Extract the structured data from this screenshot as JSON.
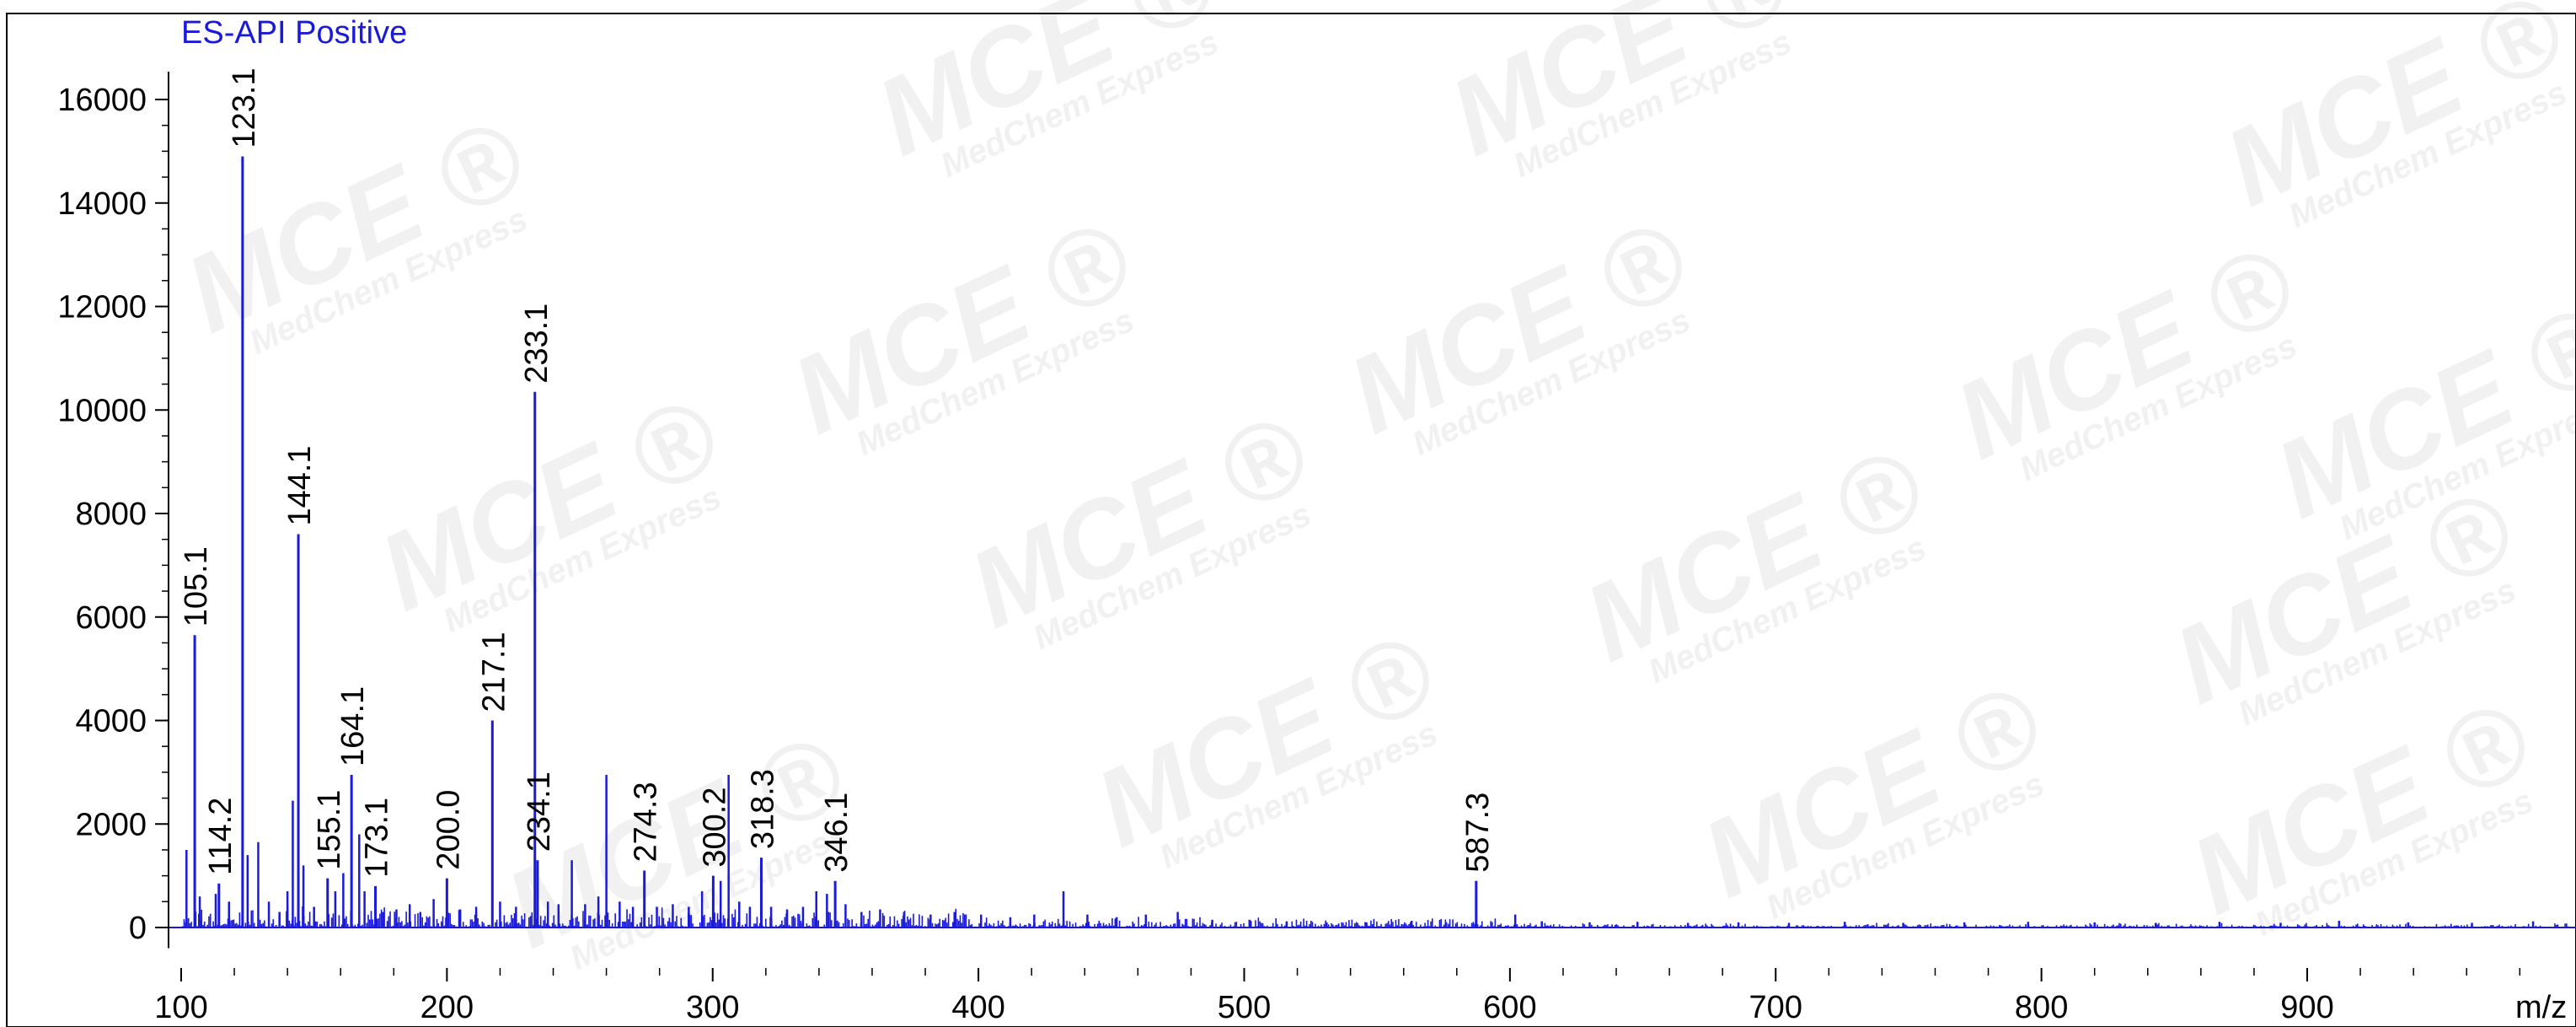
{
  "chart_data": {
    "type": "bar",
    "title": "ES-API Positive",
    "xlabel": "m/z",
    "ylabel": "",
    "xlim": [
      96,
      1000
    ],
    "ylim": [
      -400,
      16700
    ],
    "x_ticks": [
      100,
      200,
      300,
      400,
      500,
      600,
      700,
      800,
      900
    ],
    "y_ticks": [
      0,
      2000,
      4000,
      6000,
      8000,
      10000,
      12000,
      14000,
      16000
    ],
    "grid": false,
    "color": "#1a1ad8",
    "peaks": [
      {
        "x": 105.1,
        "y": 5650,
        "label": "105.1"
      },
      {
        "x": 114.2,
        "y": 850,
        "label": "114.2"
      },
      {
        "x": 123.1,
        "y": 14900,
        "label": "123.1"
      },
      {
        "x": 144.1,
        "y": 7600,
        "label": "144.1"
      },
      {
        "x": 155.1,
        "y": 950,
        "label": "155.1"
      },
      {
        "x": 164.1,
        "y": 2950,
        "label": "164.1"
      },
      {
        "x": 173.1,
        "y": 800,
        "label": "173.1"
      },
      {
        "x": 200.0,
        "y": 950,
        "label": "200.0"
      },
      {
        "x": 217.1,
        "y": 4000,
        "label": "217.1"
      },
      {
        "x": 233.1,
        "y": 10350,
        "label": "233.1"
      },
      {
        "x": 234.1,
        "y": 1300,
        "label": "234.1"
      },
      {
        "x": 274.3,
        "y": 1100,
        "label": "274.3"
      },
      {
        "x": 300.2,
        "y": 1000,
        "label": "300.2"
      },
      {
        "x": 318.3,
        "y": 1350,
        "label": "318.3"
      },
      {
        "x": 346.1,
        "y": 900,
        "label": "346.1"
      },
      {
        "x": 587.3,
        "y": 900,
        "label": "587.3"
      }
    ],
    "minor_peaks": [
      {
        "x": 102.0,
        "y": 1500
      },
      {
        "x": 107.0,
        "y": 600
      },
      {
        "x": 113.0,
        "y": 650
      },
      {
        "x": 118.0,
        "y": 500
      },
      {
        "x": 125.0,
        "y": 1400
      },
      {
        "x": 129.0,
        "y": 1650
      },
      {
        "x": 133.0,
        "y": 500
      },
      {
        "x": 137.0,
        "y": 300
      },
      {
        "x": 140.0,
        "y": 700
      },
      {
        "x": 142.0,
        "y": 2450
      },
      {
        "x": 146.0,
        "y": 1200
      },
      {
        "x": 150.0,
        "y": 400
      },
      {
        "x": 158.0,
        "y": 700
      },
      {
        "x": 161.0,
        "y": 1050
      },
      {
        "x": 167.0,
        "y": 1800
      },
      {
        "x": 169.0,
        "y": 700
      },
      {
        "x": 176.0,
        "y": 300
      },
      {
        "x": 181.0,
        "y": 350
      },
      {
        "x": 186.0,
        "y": 450
      },
      {
        "x": 190.0,
        "y": 300
      },
      {
        "x": 195.0,
        "y": 550
      },
      {
        "x": 205.0,
        "y": 350
      },
      {
        "x": 211.0,
        "y": 400
      },
      {
        "x": 220.0,
        "y": 500
      },
      {
        "x": 226.0,
        "y": 400
      },
      {
        "x": 238.0,
        "y": 500
      },
      {
        "x": 242.0,
        "y": 450
      },
      {
        "x": 247.0,
        "y": 1300
      },
      {
        "x": 252.0,
        "y": 450
      },
      {
        "x": 257.0,
        "y": 600
      },
      {
        "x": 260.0,
        "y": 2950
      },
      {
        "x": 265.0,
        "y": 500
      },
      {
        "x": 270.0,
        "y": 400
      },
      {
        "x": 279.0,
        "y": 400
      },
      {
        "x": 285.0,
        "y": 450
      },
      {
        "x": 291.0,
        "y": 400
      },
      {
        "x": 296.0,
        "y": 700
      },
      {
        "x": 303.0,
        "y": 900
      },
      {
        "x": 306.0,
        "y": 2950
      },
      {
        "x": 310.0,
        "y": 500
      },
      {
        "x": 314.0,
        "y": 400
      },
      {
        "x": 322.0,
        "y": 400
      },
      {
        "x": 328.0,
        "y": 350
      },
      {
        "x": 334.0,
        "y": 400
      },
      {
        "x": 339.0,
        "y": 700
      },
      {
        "x": 343.0,
        "y": 650
      },
      {
        "x": 350.0,
        "y": 450
      },
      {
        "x": 356.0,
        "y": 300
      },
      {
        "x": 363.0,
        "y": 350
      },
      {
        "x": 372.0,
        "y": 300
      },
      {
        "x": 382.0,
        "y": 250
      },
      {
        "x": 391.0,
        "y": 300
      },
      {
        "x": 401.0,
        "y": 250
      },
      {
        "x": 412.0,
        "y": 200
      },
      {
        "x": 421.0,
        "y": 250
      },
      {
        "x": 432.0,
        "y": 700
      },
      {
        "x": 441.0,
        "y": 250
      },
      {
        "x": 452.0,
        "y": 200
      },
      {
        "x": 463.0,
        "y": 250
      },
      {
        "x": 475.0,
        "y": 300
      },
      {
        "x": 488.0,
        "y": 150
      },
      {
        "x": 502.0,
        "y": 150
      },
      {
        "x": 516.0,
        "y": 120
      },
      {
        "x": 531.0,
        "y": 100
      },
      {
        "x": 546.0,
        "y": 100
      },
      {
        "x": 563.0,
        "y": 130
      },
      {
        "x": 576.0,
        "y": 100
      },
      {
        "x": 602.0,
        "y": 250
      },
      {
        "x": 612.0,
        "y": 120
      },
      {
        "x": 630.0,
        "y": 100
      },
      {
        "x": 648.0,
        "y": 110
      },
      {
        "x": 667.0,
        "y": 90
      },
      {
        "x": 686.0,
        "y": 100
      },
      {
        "x": 705.0,
        "y": 90
      },
      {
        "x": 726.0,
        "y": 110
      },
      {
        "x": 748.0,
        "y": 90
      },
      {
        "x": 771.0,
        "y": 100
      },
      {
        "x": 795.0,
        "y": 110
      },
      {
        "x": 820.0,
        "y": 100
      },
      {
        "x": 843.0,
        "y": 90
      },
      {
        "x": 867.0,
        "y": 110
      },
      {
        "x": 890.0,
        "y": 90
      },
      {
        "x": 912.0,
        "y": 130
      },
      {
        "x": 938.0,
        "y": 100
      },
      {
        "x": 962.0,
        "y": 90
      },
      {
        "x": 985.0,
        "y": 120
      }
    ]
  },
  "watermark": {
    "brand": "MCE",
    "company": "MedChem Express",
    "mark": "®",
    "color": "#969696"
  }
}
